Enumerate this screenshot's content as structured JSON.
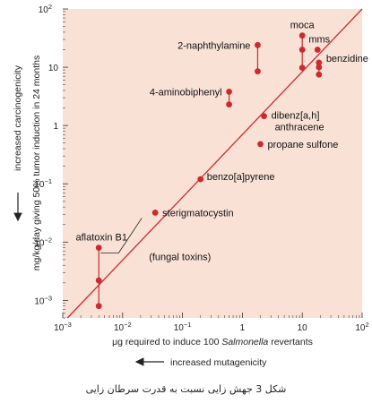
{
  "chart_data": {
    "type": "scatter",
    "x_scale": "log",
    "y_scale": "log",
    "xlim": [
      0.001,
      100
    ],
    "ylim": [
      0.0005,
      100
    ],
    "x_ticks": [
      {
        "label": "10",
        "sup": "−3"
      },
      {
        "label": "10",
        "sup": "−2"
      },
      {
        "label": "10",
        "sup": "−1"
      },
      {
        "label": "1",
        "sup": ""
      },
      {
        "label": "10",
        "sup": ""
      },
      {
        "label": "10",
        "sup": "2"
      }
    ],
    "y_ticks": [
      {
        "label": "10",
        "sup": "−3"
      },
      {
        "label": "10",
        "sup": "−2"
      },
      {
        "label": "10",
        "sup": "−1"
      },
      {
        "label": "1",
        "sup": ""
      },
      {
        "label": "10",
        "sup": ""
      },
      {
        "label": "10",
        "sup": "2"
      }
    ],
    "xlabel_pre": "μg required to induce 100 ",
    "xlabel_em": "Salmonella",
    "xlabel_post": " revertants",
    "x_direction_label": "increased mutagenicity",
    "ylabel": "mg/kg/day giving 50% tumor induction in 24 months",
    "y_direction_label": "increased carcinogenicity",
    "trend_line": {
      "x": [
        0.0012,
        100
      ],
      "y": [
        0.0005,
        100
      ]
    },
    "compounds": [
      {
        "label": "aflatoxin B1",
        "sublabel": "(fungal toxins)",
        "points": [
          [
            0.004,
            0.008
          ],
          [
            0.004,
            0.0022
          ],
          [
            0.004,
            0.0008
          ]
        ]
      },
      {
        "label": "sterigmatocystin",
        "points": [
          [
            0.035,
            0.032
          ]
        ]
      },
      {
        "label": "benzo[a]pyrene",
        "points": [
          [
            0.2,
            0.12
          ]
        ]
      },
      {
        "label": "propane sulfone",
        "points": [
          [
            2,
            0.48
          ]
        ]
      },
      {
        "label": "dibenz[a,h] anthracene",
        "points": [
          [
            2.3,
            1.45
          ]
        ]
      },
      {
        "label": "4-aminobiphenyl",
        "points": [
          [
            0.6,
            3.8
          ],
          [
            0.6,
            2.3
          ]
        ]
      },
      {
        "label": "2-naphthylamine",
        "points": [
          [
            1.8,
            24
          ],
          [
            1.8,
            8.5
          ]
        ]
      },
      {
        "label": "moca",
        "points": [
          [
            10,
            35
          ],
          [
            10,
            20
          ],
          [
            10,
            9.8
          ]
        ]
      },
      {
        "label": "mms",
        "points": [
          [
            18,
            20
          ]
        ]
      },
      {
        "label": "benzidine",
        "points": [
          [
            19,
            12
          ],
          [
            19,
            10
          ],
          [
            19,
            7.5
          ]
        ]
      }
    ]
  },
  "caption": "شکل 3 جهش زایی نسبت به قدرت سرطان زایی"
}
